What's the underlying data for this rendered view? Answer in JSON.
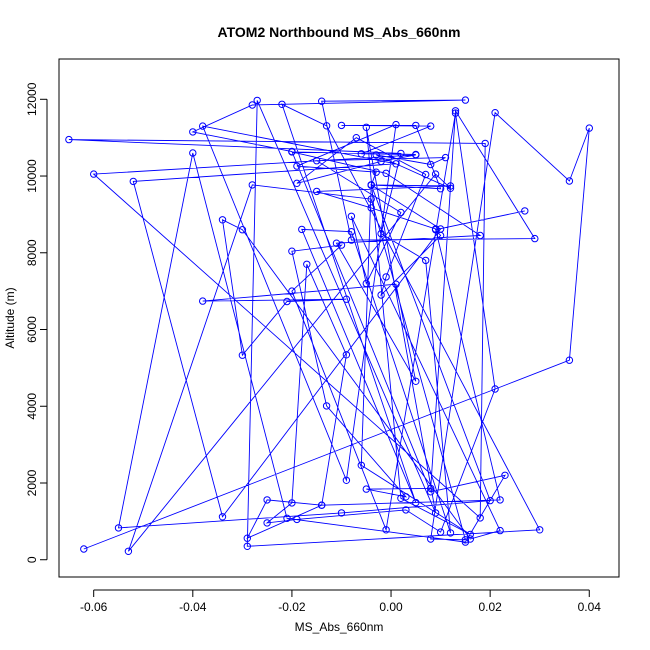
{
  "chart_data": {
    "type": "line",
    "title": "ATOM2 Northbound MS_Abs_660nm",
    "xlabel": "MS_Abs_660nm",
    "ylabel": "Altitude (m)",
    "xlim": [
      -0.067,
      0.046
    ],
    "ylim": [
      -450,
      13050
    ],
    "x_ticks": [
      -0.06,
      -0.04,
      -0.02,
      0.0,
      0.02,
      0.04
    ],
    "x_tick_labels": [
      "-0.06",
      "-0.04",
      "-0.02",
      "0.00",
      "0.02",
      "0.04"
    ],
    "y_ticks": [
      0,
      2000,
      4000,
      6000,
      8000,
      10000,
      12000
    ],
    "y_tick_labels": [
      "0",
      "2000",
      "4000",
      "6000",
      "8000",
      "10000",
      "12000"
    ],
    "color": "#0000ff",
    "series": [
      {
        "points": [
          [
            -0.062,
            280
          ],
          [
            0.036,
            5200
          ],
          [
            0.04,
            11250
          ],
          [
            0.036,
            9870
          ],
          [
            0.021,
            11650
          ],
          [
            0.008,
            540
          ],
          [
            0.015,
            520
          ],
          [
            -0.004,
            9400
          ],
          [
            -0.028,
            9770
          ],
          [
            -0.053,
            220
          ],
          [
            0.009,
            10050
          ],
          [
            0.012,
            9680
          ],
          [
            -0.003,
            10550
          ],
          [
            0.008,
            10300
          ],
          [
            0.011,
            10480
          ],
          [
            -0.015,
            10400
          ],
          [
            0.002,
            9050
          ],
          [
            -0.005,
            7200
          ],
          [
            -0.008,
            8950
          ],
          [
            0.022,
            760
          ],
          [
            0.016,
            540
          ],
          [
            -0.03,
            8600
          ],
          [
            -0.034,
            8860
          ],
          [
            -0.03,
            5330
          ],
          [
            -0.021,
            6730
          ],
          [
            -0.009,
            6790
          ],
          [
            -0.038,
            6740
          ],
          [
            0.001,
            7180
          ],
          [
            0.005,
            4650
          ],
          [
            -0.011,
            8250
          ],
          [
            0.018,
            8450
          ],
          [
            -0.001,
            10070
          ],
          [
            -0.02,
            10630
          ],
          [
            0.005,
            10560
          ],
          [
            -0.006,
            10580
          ],
          [
            0.008,
            11300
          ],
          [
            -0.01,
            11320
          ],
          [
            0.005,
            11320
          ],
          [
            0.01,
            9670
          ],
          [
            -0.004,
            9770
          ],
          [
            0.012,
            9740
          ],
          [
            -0.015,
            9600
          ],
          [
            -0.004,
            9170
          ],
          [
            0.009,
            8620
          ],
          [
            0.022,
            1560
          ],
          [
            -0.014,
            1420
          ],
          [
            -0.025,
            1560
          ],
          [
            -0.029,
            560
          ],
          [
            -0.014,
            1420
          ],
          [
            -0.009,
            5340
          ],
          [
            -0.017,
            7700
          ],
          [
            -0.02,
            1480
          ],
          [
            -0.025,
            960
          ],
          [
            -0.019,
            1050
          ],
          [
            0.003,
            1300
          ],
          [
            0.01,
            720
          ],
          [
            0.021,
            4450
          ],
          [
            0.013,
            11640
          ],
          [
            -0.001,
            780
          ],
          [
            -0.02,
            7000
          ],
          [
            -0.01,
            8200
          ],
          [
            -0.02,
            8040
          ],
          [
            -0.013,
            4010
          ],
          [
            0.003,
            1640
          ],
          [
            -0.005,
            1840
          ],
          [
            0.008,
            1860
          ],
          [
            0.013,
            11700
          ],
          [
            0.029,
            8370
          ],
          [
            -0.008,
            8330
          ],
          [
            -0.014,
            11950
          ],
          [
            0.015,
            11980
          ],
          [
            -0.028,
            11850
          ],
          [
            -0.04,
            11150
          ],
          [
            -0.02,
            10640
          ],
          [
            0.008,
            1770
          ],
          [
            0.023,
            2200
          ],
          [
            0.015,
            460
          ],
          [
            -0.021,
            1080
          ],
          [
            -0.04,
            10600
          ],
          [
            -0.055,
            830
          ],
          [
            -0.01,
            1220
          ],
          [
            0.02,
            1540
          ],
          [
            -0.004,
            9770
          ],
          [
            0.01,
            8620
          ],
          [
            -0.034,
            1120
          ],
          [
            -0.052,
            9860
          ],
          [
            0.001,
            10320
          ],
          [
            -0.038,
            11300
          ],
          [
            -0.009,
            2070
          ],
          [
            0.001,
            11340
          ],
          [
            -0.019,
            10260
          ],
          [
            -0.003,
            10100
          ],
          [
            -0.004,
            9760
          ],
          [
            -0.006,
            2460
          ],
          [
            0.016,
            660
          ],
          [
            0.002,
            1600
          ],
          [
            -0.005,
            11270
          ],
          [
            0.009,
            1220
          ],
          [
            -0.027,
            11970
          ],
          [
            -0.029,
            350
          ],
          [
            0.03,
            780
          ],
          [
            -0.013,
            11310
          ],
          [
            -0.022,
            11870
          ],
          [
            0.005,
            1490
          ],
          [
            -0.018,
            8610
          ],
          [
            -0.008,
            8550
          ],
          [
            0.012,
            700
          ],
          [
            0.007,
            7800
          ],
          [
            -0.002,
            8500
          ],
          [
            0.002,
            10590
          ],
          [
            -0.065,
            10950
          ],
          [
            0.019,
            10850
          ],
          [
            0.018,
            1090
          ],
          [
            -0.06,
            10050
          ],
          [
            0.005,
            10550
          ],
          [
            -0.002,
            10380
          ],
          [
            -0.019,
            9810
          ],
          [
            -0.007,
            11000
          ],
          [
            0.007,
            10040
          ],
          [
            -0.001,
            7370
          ],
          [
            -0.002,
            6900
          ],
          [
            0.01,
            8450
          ],
          [
            0.009,
            8600
          ],
          [
            0.027,
            9090
          ]
        ]
      }
    ]
  }
}
